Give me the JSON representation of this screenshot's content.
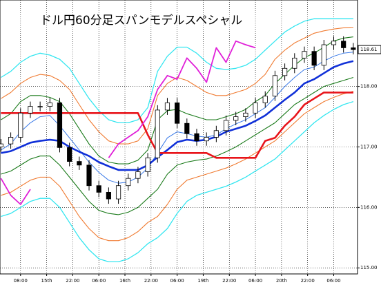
{
  "chart_data": {
    "type": "candlestick",
    "title": "ドル円60分足スパンモデルスペシャル",
    "x": [
      -6,
      -3,
      0,
      3,
      6,
      9,
      12,
      15,
      18,
      21,
      24,
      27,
      30,
      33,
      36,
      39,
      42,
      45,
      48,
      51,
      54,
      57,
      60,
      63,
      66,
      69,
      72,
      75,
      78,
      81,
      84,
      87,
      90,
      93,
      96,
      99,
      102
    ],
    "open": [
      117.0,
      117.05,
      117.16,
      117.56,
      117.67,
      117.67,
      117.73,
      116.99,
      116.76,
      116.7,
      116.36,
      116.25,
      116.14,
      116.36,
      116.48,
      116.59,
      116.82,
      117.61,
      117.73,
      117.39,
      117.22,
      117.1,
      117.16,
      117.27,
      117.44,
      117.5,
      117.56,
      117.73,
      117.84,
      118.18,
      118.3,
      118.47,
      118.58,
      118.35,
      118.69,
      118.75,
      118.64
    ],
    "high": [
      117.13,
      117.24,
      117.64,
      117.75,
      117.75,
      117.81,
      117.81,
      117.07,
      116.84,
      116.78,
      116.44,
      116.33,
      116.44,
      116.56,
      116.67,
      116.9,
      117.69,
      117.81,
      117.81,
      117.47,
      117.3,
      117.24,
      117.35,
      117.52,
      117.58,
      117.64,
      117.81,
      117.92,
      118.26,
      118.38,
      118.55,
      118.66,
      118.66,
      118.77,
      118.83,
      118.83,
      118.72
    ],
    "low": [
      116.92,
      116.97,
      117.08,
      117.48,
      117.59,
      117.59,
      116.91,
      116.68,
      116.62,
      116.28,
      116.17,
      116.06,
      116.06,
      116.28,
      116.4,
      116.51,
      116.74,
      117.53,
      117.31,
      117.14,
      117.02,
      117.02,
      117.08,
      117.19,
      117.36,
      117.42,
      117.48,
      117.65,
      117.76,
      118.1,
      118.22,
      118.39,
      118.27,
      118.27,
      118.61,
      118.56,
      118.53
    ],
    "close": [
      117.05,
      117.16,
      117.56,
      117.67,
      117.67,
      117.73,
      116.99,
      116.76,
      116.7,
      116.36,
      116.25,
      116.14,
      116.36,
      116.48,
      116.59,
      116.82,
      117.61,
      117.73,
      117.39,
      117.22,
      117.1,
      117.16,
      117.27,
      117.44,
      117.5,
      117.56,
      117.73,
      117.84,
      118.18,
      118.3,
      118.47,
      118.58,
      118.35,
      118.69,
      118.75,
      118.64,
      118.61
    ],
    "series": [
      {
        "color": "#33e6f0",
        "line_width": 1.3,
        "values": [
          118.15,
          118.25,
          118.4,
          118.5,
          118.55,
          118.52,
          118.45,
          118.3,
          118.05,
          117.8,
          117.6,
          117.45,
          117.4,
          117.4,
          117.45,
          117.65,
          118.25,
          118.5,
          118.65,
          118.65,
          118.55,
          118.4,
          118.3,
          118.28,
          118.3,
          118.35,
          118.45,
          118.6,
          118.75,
          118.9,
          119.0,
          119.08,
          119.12,
          119.12,
          119.12,
          119.12,
          119.12
        ]
      },
      {
        "color": "#33e6f0",
        "line_width": 1.3,
        "values": [
          115.85,
          115.9,
          116.0,
          116.1,
          116.15,
          116.15,
          116.0,
          115.75,
          115.5,
          115.3,
          115.15,
          115.1,
          115.1,
          115.15,
          115.25,
          115.4,
          115.5,
          115.65,
          115.9,
          116.1,
          116.2,
          116.25,
          116.3,
          116.35,
          116.42,
          116.5,
          116.6,
          116.7,
          116.8,
          116.95,
          117.1,
          117.25,
          117.4,
          117.52,
          117.62,
          117.7,
          117.75
        ]
      },
      {
        "color": "#f07a30",
        "line_width": 1.1,
        "values": [
          117.8,
          117.9,
          118.05,
          118.15,
          118.2,
          118.18,
          118.1,
          117.95,
          117.7,
          117.45,
          117.25,
          117.1,
          117.05,
          117.05,
          117.1,
          117.3,
          117.85,
          118.05,
          118.15,
          118.1,
          118.0,
          117.9,
          117.85,
          117.85,
          117.9,
          117.95,
          118.05,
          118.2,
          118.45,
          118.6,
          118.72,
          118.8,
          118.88,
          118.92,
          118.95,
          118.97,
          118.98
        ]
      },
      {
        "color": "#f07a30",
        "line_width": 1.1,
        "values": [
          116.2,
          116.25,
          116.35,
          116.45,
          116.5,
          116.5,
          116.35,
          116.1,
          115.85,
          115.65,
          115.5,
          115.45,
          115.45,
          115.5,
          115.6,
          115.75,
          115.85,
          116.05,
          116.3,
          116.45,
          116.5,
          116.55,
          116.6,
          116.65,
          116.72,
          116.8,
          116.9,
          117.0,
          117.1,
          117.25,
          117.4,
          117.55,
          117.65,
          117.75,
          117.82,
          117.88,
          117.92
        ]
      },
      {
        "color": "#1a7a1a",
        "line_width": 1.1,
        "values": [
          117.45,
          117.55,
          117.75,
          117.85,
          117.85,
          117.82,
          117.75,
          117.55,
          117.3,
          117.05,
          116.85,
          116.75,
          116.72,
          116.72,
          116.78,
          116.95,
          117.45,
          117.6,
          117.62,
          117.55,
          117.5,
          117.45,
          117.45,
          117.5,
          117.55,
          117.62,
          117.75,
          117.85,
          118.05,
          118.2,
          118.35,
          118.48,
          118.55,
          118.65,
          118.75,
          118.8,
          118.82
        ]
      },
      {
        "color": "#1a7a1a",
        "line_width": 1.1,
        "values": [
          116.55,
          116.6,
          116.7,
          116.8,
          116.85,
          116.85,
          116.7,
          116.5,
          116.3,
          116.1,
          115.95,
          115.9,
          115.88,
          115.92,
          116.0,
          116.15,
          116.3,
          116.55,
          116.7,
          116.75,
          116.78,
          116.8,
          116.85,
          116.92,
          117.0,
          117.1,
          117.2,
          117.3,
          117.4,
          117.55,
          117.7,
          117.8,
          117.9,
          118.0,
          118.05,
          118.1,
          118.15
        ]
      },
      {
        "color": "#3a7ae8",
        "line_width": 1,
        "values": [
          116.95,
          117.05,
          117.25,
          117.4,
          117.5,
          117.52,
          117.35,
          117.15,
          116.95,
          116.75,
          116.58,
          116.45,
          116.4,
          116.42,
          116.5,
          116.65,
          116.9,
          117.15,
          117.25,
          117.22,
          117.18,
          117.16,
          117.2,
          117.3,
          117.38,
          117.45,
          117.55,
          117.65,
          117.82,
          118.0,
          118.15,
          118.28,
          118.32,
          118.42,
          118.5,
          118.55,
          118.57
        ]
      },
      {
        "color": "#1030d8",
        "line_width": 2.6,
        "values": [
          116.9,
          116.93,
          117.0,
          117.07,
          117.1,
          117.12,
          117.1,
          117.0,
          116.92,
          116.85,
          116.75,
          116.68,
          116.62,
          116.62,
          116.62,
          116.7,
          116.83,
          116.95,
          117.08,
          117.12,
          117.1,
          117.12,
          117.17,
          117.25,
          117.3,
          117.35,
          117.43,
          117.52,
          117.65,
          117.78,
          117.9,
          118.05,
          118.12,
          118.22,
          118.32,
          118.38,
          118.42
        ]
      },
      {
        "color": "#e8141a",
        "line_width": 2.6,
        "values": [
          117.56,
          117.56,
          117.56,
          117.56,
          117.56,
          117.56,
          117.56,
          117.56,
          117.56,
          117.56,
          117.56,
          117.56,
          117.56,
          117.56,
          117.56,
          117.2,
          116.9,
          116.9,
          116.9,
          116.9,
          116.9,
          116.9,
          116.82,
          116.82,
          116.82,
          116.82,
          116.82,
          117.1,
          117.15,
          117.35,
          117.5,
          117.7,
          117.8,
          117.9,
          117.9,
          117.9,
          117.9
        ]
      },
      {
        "color": "#e020d8",
        "line_width": 1.8,
        "values": [
          116.48,
          116.2,
          116.05,
          116.3,
          null,
          null,
          null,
          null,
          null,
          null,
          null,
          116.82,
          117.05,
          117.16,
          117.27,
          117.5,
          117.95,
          118.18,
          118.12,
          118.47,
          118.3,
          118.07,
          118.64,
          118.4,
          118.75,
          118.69,
          118.64,
          null,
          null,
          null,
          null,
          null,
          null,
          null,
          null,
          null,
          null
        ]
      }
    ],
    "xlim": [
      -6.3,
      103.3
    ],
    "ylim": [
      114.9,
      119.43
    ],
    "xticks": [
      {
        "value": 0,
        "label": "08:00"
      },
      {
        "value": 8,
        "label": "15th"
      },
      {
        "value": 16,
        "label": "22:00"
      },
      {
        "value": 24,
        "label": "06:00"
      },
      {
        "value": 32,
        "label": "16th"
      },
      {
        "value": 40,
        "label": "22:00"
      },
      {
        "value": 48,
        "label": "06:00"
      },
      {
        "value": 56,
        "label": "19th"
      },
      {
        "value": 64,
        "label": "22:00"
      },
      {
        "value": 72,
        "label": "06:00"
      },
      {
        "value": 80,
        "label": "20th"
      },
      {
        "value": 88,
        "label": "22:00"
      },
      {
        "value": 96,
        "label": "06:00"
      }
    ],
    "yticks": [
      {
        "value": 115,
        "label": "115.00"
      },
      {
        "value": 116,
        "label": "116.00"
      },
      {
        "value": 117,
        "label": "117.00"
      },
      {
        "value": 118,
        "label": "118.00"
      }
    ],
    "last_price": {
      "value": 118.61,
      "label": "118.61"
    },
    "grid": true,
    "up_color": "#ffffff",
    "down_color": "#000000"
  }
}
